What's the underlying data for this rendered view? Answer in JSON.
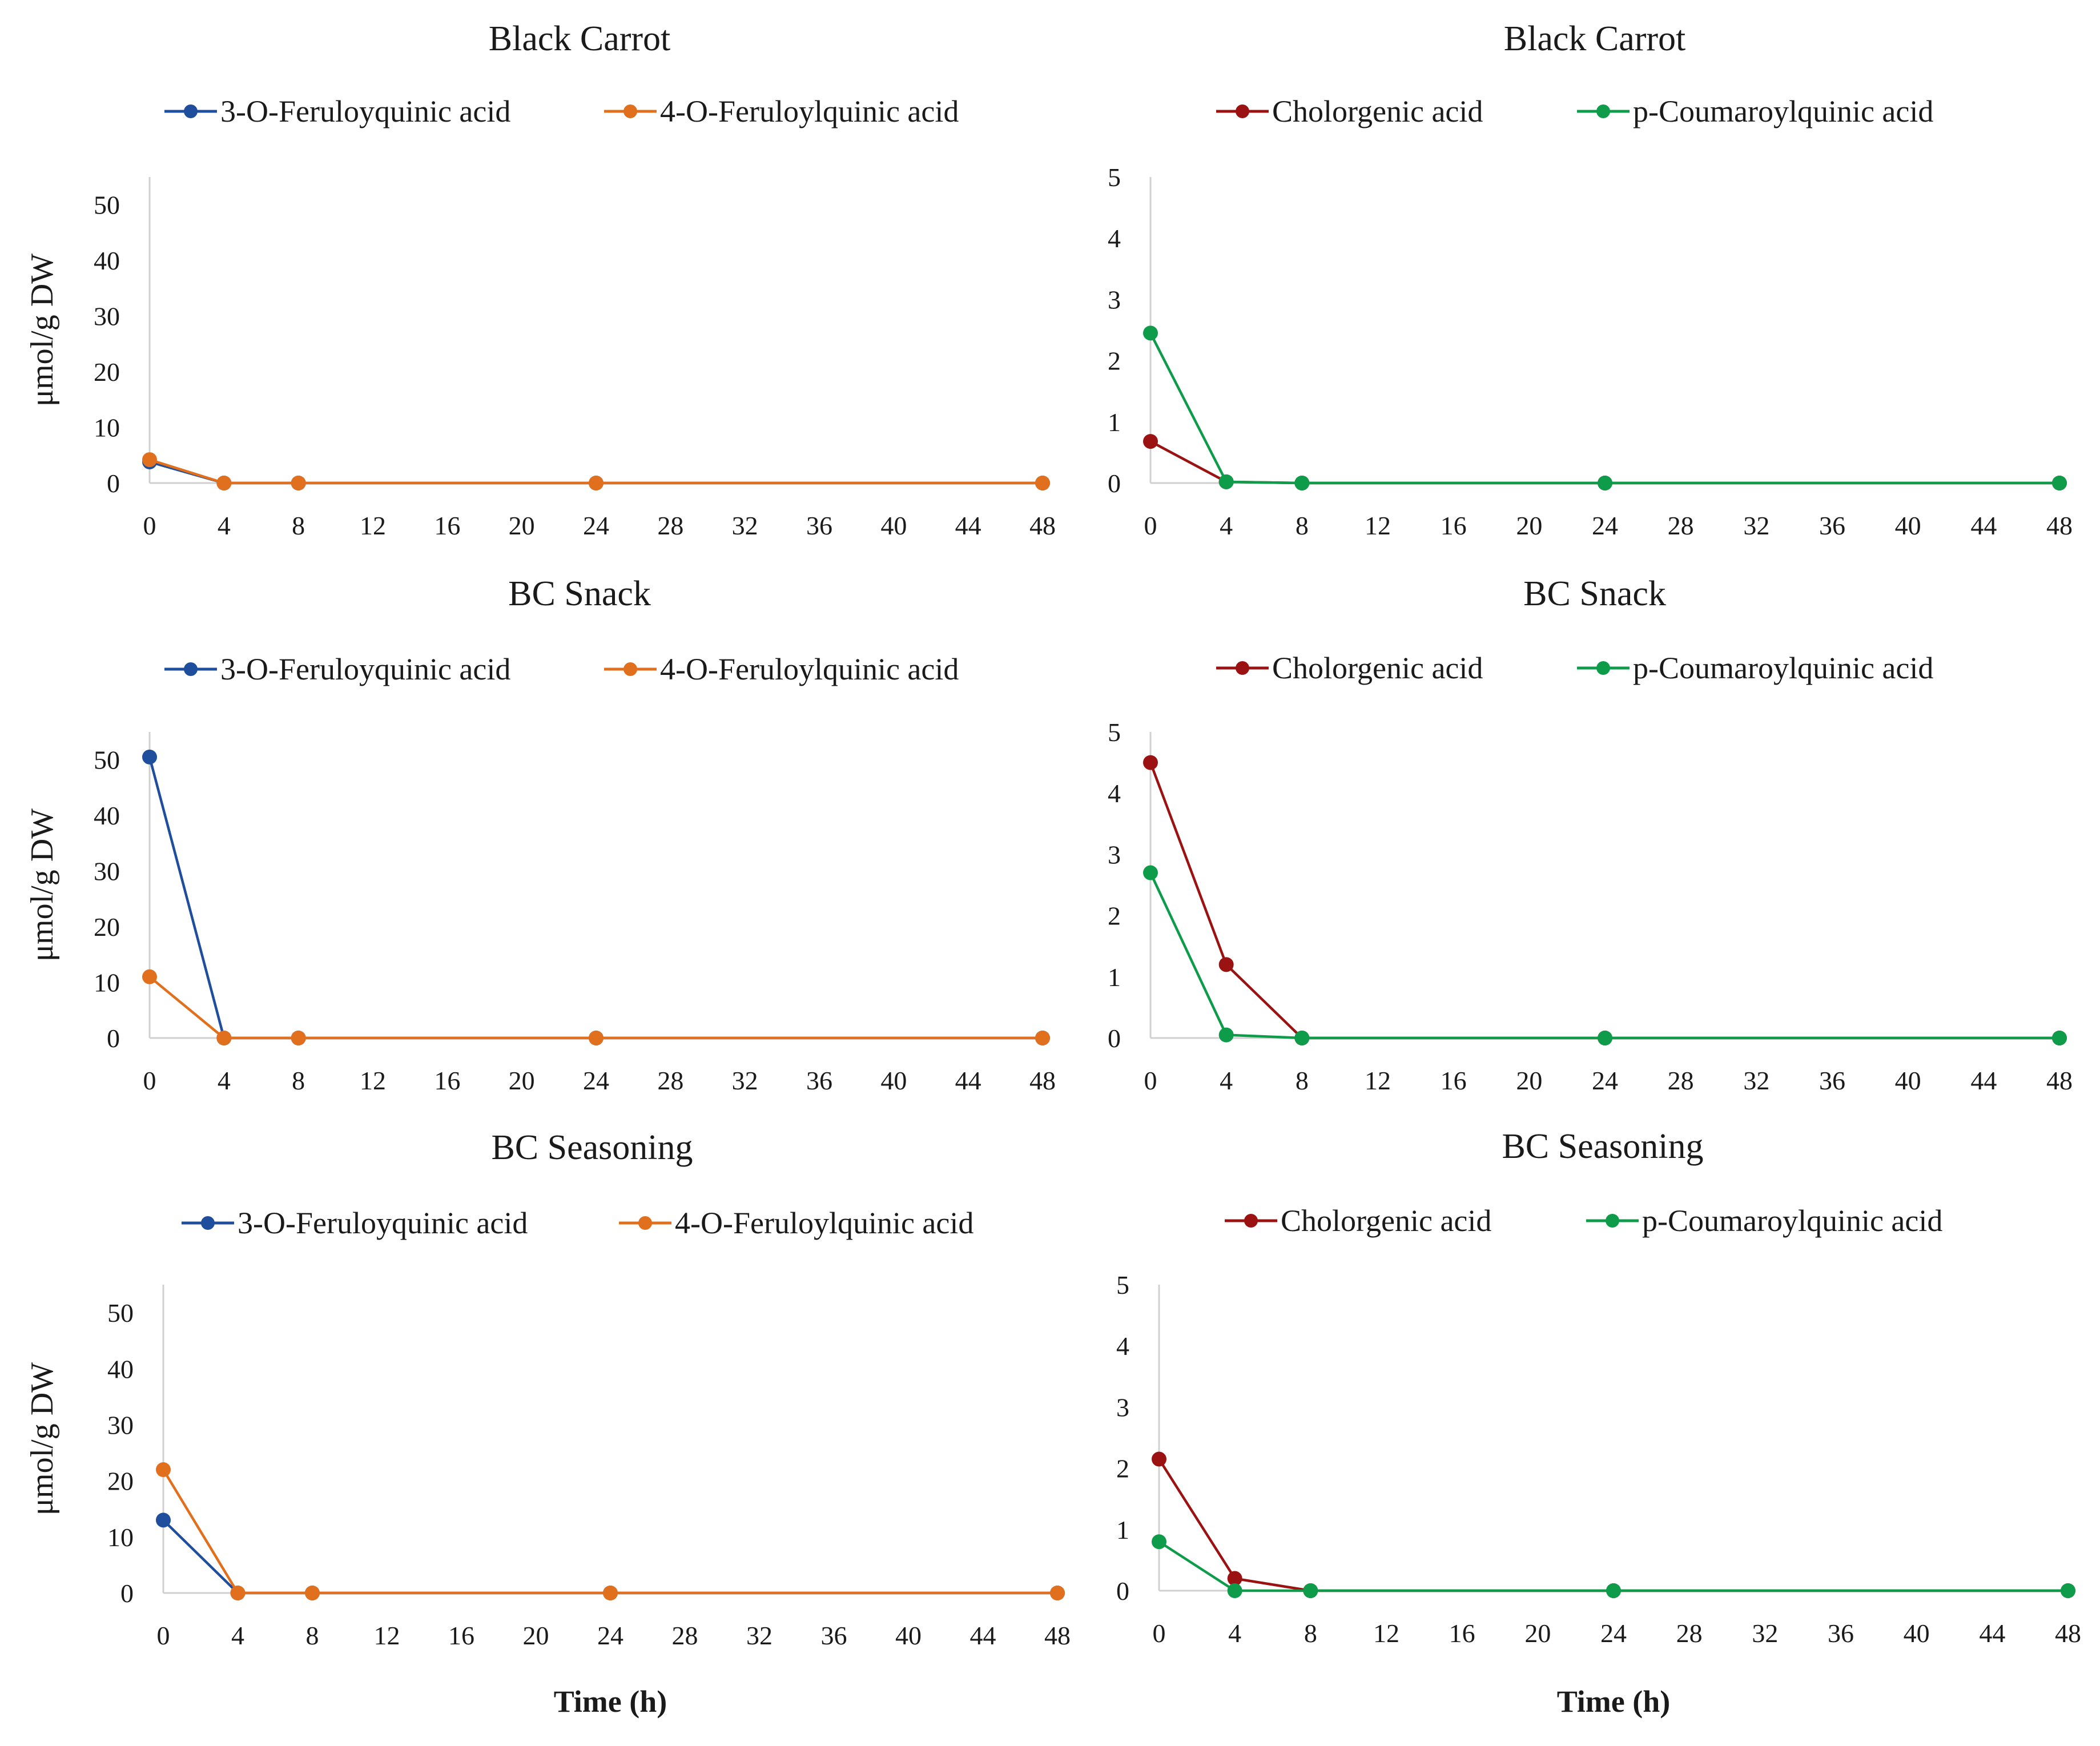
{
  "chart_data": [
    {
      "type": "line",
      "title": "Black Carrot",
      "ylabel": "μmol/g DW",
      "xlabel": "",
      "x": [
        0,
        4,
        8,
        24,
        48
      ],
      "xlim": [
        0,
        48
      ],
      "xticks": [
        "0",
        "4",
        "8",
        "12",
        "16",
        "20",
        "24",
        "28",
        "32",
        "36",
        "40",
        "44",
        "48"
      ],
      "ylim": [
        0,
        55
      ],
      "yticks": [
        "0",
        "10",
        "20",
        "30",
        "40",
        "50"
      ],
      "series": [
        {
          "name": "3-O-Feruloyquinic acid",
          "color": "#1f4e9c",
          "values": [
            3.8,
            0,
            0,
            0,
            0
          ]
        },
        {
          "name": "4-O-Feruloylquinic acid",
          "color": "#e0701e",
          "values": [
            4.2,
            0,
            0,
            0,
            0
          ]
        }
      ]
    },
    {
      "type": "line",
      "title": "Black Carrot",
      "ylabel": "",
      "xlabel": "",
      "x": [
        0,
        4,
        8,
        24,
        48
      ],
      "xlim": [
        0,
        48
      ],
      "xticks": [
        "0",
        "4",
        "8",
        "12",
        "16",
        "20",
        "24",
        "28",
        "32",
        "36",
        "40",
        "44",
        "48"
      ],
      "ylim": [
        0,
        5
      ],
      "yticks": [
        "0",
        "1",
        "2",
        "3",
        "4",
        "5"
      ],
      "series": [
        {
          "name": "Cholorgenic acid",
          "color": "#9b1212",
          "values": [
            0.68,
            0.02,
            0,
            0,
            0
          ]
        },
        {
          "name": "p-Coumaroylquinic acid",
          "color": "#0e9b4a",
          "values": [
            2.45,
            0.02,
            0,
            0,
            0
          ]
        }
      ]
    },
    {
      "type": "line",
      "title": "BC Snack",
      "ylabel": "μmol/g DW",
      "xlabel": "",
      "x": [
        0,
        4,
        8,
        24,
        48
      ],
      "xlim": [
        0,
        48
      ],
      "xticks": [
        "0",
        "4",
        "8",
        "12",
        "16",
        "20",
        "24",
        "28",
        "32",
        "36",
        "40",
        "44",
        "48"
      ],
      "ylim": [
        0,
        55
      ],
      "yticks": [
        "0",
        "10",
        "20",
        "30",
        "40",
        "50"
      ],
      "series": [
        {
          "name": "3-O-Feruloyquinic acid",
          "color": "#1f4e9c",
          "values": [
            50.5,
            0,
            0,
            0,
            0
          ]
        },
        {
          "name": "4-O-Feruloylquinic acid",
          "color": "#e0701e",
          "values": [
            11,
            0,
            0,
            0,
            0
          ]
        }
      ]
    },
    {
      "type": "line",
      "title": "BC Snack",
      "ylabel": "",
      "xlabel": "",
      "x": [
        0,
        4,
        8,
        24,
        48
      ],
      "xlim": [
        0,
        48
      ],
      "xticks": [
        "0",
        "4",
        "8",
        "12",
        "16",
        "20",
        "24",
        "28",
        "32",
        "36",
        "40",
        "44",
        "48"
      ],
      "ylim": [
        0,
        5
      ],
      "yticks": [
        "0",
        "1",
        "2",
        "3",
        "4",
        "5"
      ],
      "series": [
        {
          "name": "Cholorgenic acid",
          "color": "#9b1212",
          "values": [
            4.5,
            1.2,
            0,
            0,
            0
          ]
        },
        {
          "name": "p-Coumaroylquinic acid",
          "color": "#0e9b4a",
          "values": [
            2.7,
            0.05,
            0,
            0,
            0
          ]
        }
      ]
    },
    {
      "type": "line",
      "title": "BC Seasoning",
      "ylabel": "μmol/g DW",
      "xlabel": "Time (h)",
      "x": [
        0,
        4,
        8,
        24,
        48
      ],
      "xlim": [
        0,
        48
      ],
      "xticks": [
        "0",
        "4",
        "8",
        "12",
        "16",
        "20",
        "24",
        "28",
        "32",
        "36",
        "40",
        "44",
        "48"
      ],
      "ylim": [
        0,
        55
      ],
      "yticks": [
        "0",
        "10",
        "20",
        "30",
        "40",
        "50"
      ],
      "series": [
        {
          "name": "3-O-Feruloyquinic acid",
          "color": "#1f4e9c",
          "values": [
            13,
            0,
            0,
            0,
            0
          ]
        },
        {
          "name": "4-O-Feruloylquinic acid",
          "color": "#e0701e",
          "values": [
            22,
            0,
            0,
            0,
            0
          ]
        }
      ]
    },
    {
      "type": "line",
      "title": "BC Seasoning",
      "ylabel": "",
      "xlabel": "Time (h)",
      "x": [
        0,
        4,
        8,
        24,
        48
      ],
      "xlim": [
        0,
        48
      ],
      "xticks": [
        "0",
        "4",
        "8",
        "12",
        "16",
        "20",
        "24",
        "28",
        "32",
        "36",
        "40",
        "44",
        "48"
      ],
      "ylim": [
        0,
        5
      ],
      "yticks": [
        "0",
        "1",
        "2",
        "3",
        "4",
        "5"
      ],
      "series": [
        {
          "name": "Cholorgenic acid",
          "color": "#9b1212",
          "values": [
            2.15,
            0.2,
            0,
            0,
            0
          ]
        },
        {
          "name": "p-Coumaroylquinic acid",
          "color": "#0e9b4a",
          "values": [
            0.8,
            0,
            0,
            0,
            0
          ]
        }
      ]
    }
  ]
}
